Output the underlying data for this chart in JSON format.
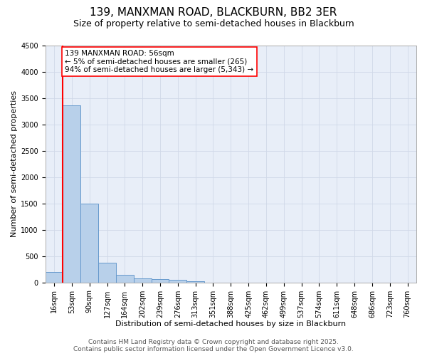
{
  "title": "139, MANXMAN ROAD, BLACKBURN, BB2 3ER",
  "subtitle": "Size of property relative to semi-detached houses in Blackburn",
  "xlabel": "Distribution of semi-detached houses by size in Blackburn",
  "ylabel": "Number of semi-detached properties",
  "footer_line1": "Contains HM Land Registry data © Crown copyright and database right 2025.",
  "footer_line2": "Contains public sector information licensed under the Open Government Licence v3.0.",
  "annotation_title": "139 MANXMAN ROAD: 56sqm",
  "annotation_line1": "← 5% of semi-detached houses are smaller (265)",
  "annotation_line2": "94% of semi-detached houses are larger (5,343) →",
  "bin_labels": [
    "16sqm",
    "53sqm",
    "90sqm",
    "127sqm",
    "164sqm",
    "202sqm",
    "239sqm",
    "276sqm",
    "313sqm",
    "351sqm",
    "388sqm",
    "425sqm",
    "462sqm",
    "499sqm",
    "537sqm",
    "574sqm",
    "611sqm",
    "648sqm",
    "686sqm",
    "723sqm",
    "760sqm"
  ],
  "bar_values": [
    195,
    3370,
    1500,
    375,
    140,
    80,
    60,
    55,
    30,
    0,
    0,
    0,
    0,
    0,
    0,
    0,
    0,
    0,
    0,
    0,
    0
  ],
  "bar_color": "#b8d0ea",
  "bar_edge_color": "#6699cc",
  "marker_color": "red",
  "ylim": [
    0,
    4500
  ],
  "yticks": [
    0,
    500,
    1000,
    1500,
    2000,
    2500,
    3000,
    3500,
    4000,
    4500
  ],
  "grid_color": "#d0d8e8",
  "background_color": "#e8eef8",
  "title_fontsize": 11,
  "subtitle_fontsize": 9,
  "axis_label_fontsize": 8,
  "tick_fontsize": 7,
  "annotation_fontsize": 7.5,
  "footer_fontsize": 6.5
}
